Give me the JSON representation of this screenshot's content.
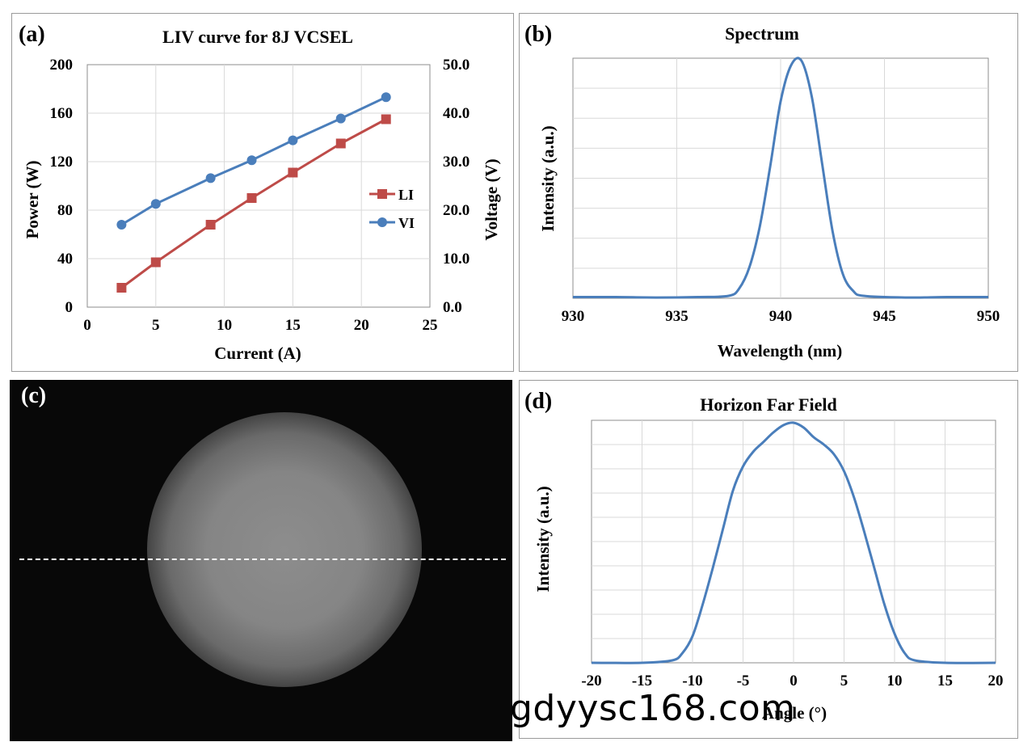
{
  "chart_data": [
    {
      "panel": "(a)",
      "type": "line",
      "title": "LIV curve for 8J VCSEL",
      "xlabel": "Current (A)",
      "ylabel": "Power (W)",
      "y2label": "Voltage (V)",
      "xlim": [
        0,
        25
      ],
      "ylim": [
        0,
        200
      ],
      "y2lim": [
        0,
        50
      ],
      "xticks": [
        "0",
        "5",
        "10",
        "15",
        "20",
        "25"
      ],
      "yticks": [
        "0",
        "40",
        "80",
        "120",
        "160",
        "200"
      ],
      "y2ticks": [
        "0.0",
        "10.0",
        "20.0",
        "30.0",
        "40.0",
        "50.0"
      ],
      "grid": true,
      "legend_position": "right",
      "series": [
        {
          "name": "LI",
          "axis": "left",
          "color": "#be4b48",
          "marker": "square",
          "x": [
            2.5,
            5,
            9,
            12,
            15,
            18.5,
            21.8
          ],
          "y": [
            16,
            37,
            68,
            90,
            111,
            135,
            155
          ]
        },
        {
          "name": "VI",
          "axis": "right",
          "color": "#4a7ebb",
          "marker": "circle",
          "x": [
            2.5,
            5,
            9,
            12,
            15,
            18.5,
            21.8
          ],
          "y": [
            17.0,
            21.3,
            26.6,
            30.3,
            34.4,
            38.9,
            43.3
          ]
        }
      ]
    },
    {
      "panel": "(b)",
      "type": "line",
      "title": "Spectrum",
      "xlabel": "Wavelength (nm)",
      "ylabel": "Intensity (a.u.)",
      "xlim": [
        930,
        950
      ],
      "ylim": [
        0,
        1
      ],
      "xticks": [
        "930",
        "935",
        "940",
        "945",
        "950"
      ],
      "grid": true,
      "series": [
        {
          "color": "#4a7ebb",
          "x": [
            930,
            932,
            934,
            936,
            937.5,
            938,
            938.5,
            939,
            939.5,
            940,
            940.5,
            941,
            941.5,
            942,
            942.5,
            943,
            943.5,
            944,
            946,
            948,
            950
          ],
          "y": [
            0.005,
            0.005,
            0.003,
            0.005,
            0.01,
            0.04,
            0.13,
            0.3,
            0.55,
            0.82,
            0.97,
            0.99,
            0.84,
            0.56,
            0.28,
            0.1,
            0.03,
            0.01,
            0.003,
            0.005,
            0.005
          ]
        }
      ]
    },
    {
      "panel": "(d)",
      "type": "line",
      "title": "Horizon Far Field",
      "xlabel": "Angle (°)",
      "ylabel": "Intensity (a.u.)",
      "xlim": [
        -20,
        20
      ],
      "ylim": [
        0,
        1
      ],
      "xticks": [
        "-20",
        "-15",
        "-10",
        "-5",
        "0",
        "5",
        "10",
        "15",
        "20"
      ],
      "grid": true,
      "series": [
        {
          "color": "#4a7ebb",
          "x": [
            -20,
            -15,
            -12,
            -11,
            -10,
            -9,
            -8,
            -7,
            -6,
            -5,
            -4,
            -3,
            -2,
            -1,
            0,
            1,
            2,
            3,
            4,
            5,
            6,
            7,
            8,
            9,
            10,
            11,
            12,
            15,
            20
          ],
          "y": [
            0.0,
            0.0,
            0.01,
            0.04,
            0.11,
            0.24,
            0.39,
            0.55,
            0.71,
            0.81,
            0.87,
            0.91,
            0.95,
            0.98,
            0.99,
            0.97,
            0.93,
            0.9,
            0.86,
            0.79,
            0.68,
            0.54,
            0.39,
            0.24,
            0.12,
            0.04,
            0.01,
            0.0,
            0.0
          ]
        }
      ]
    }
  ],
  "panel_c": {
    "label": "(c)"
  },
  "watermark": "gdyysc168.com"
}
